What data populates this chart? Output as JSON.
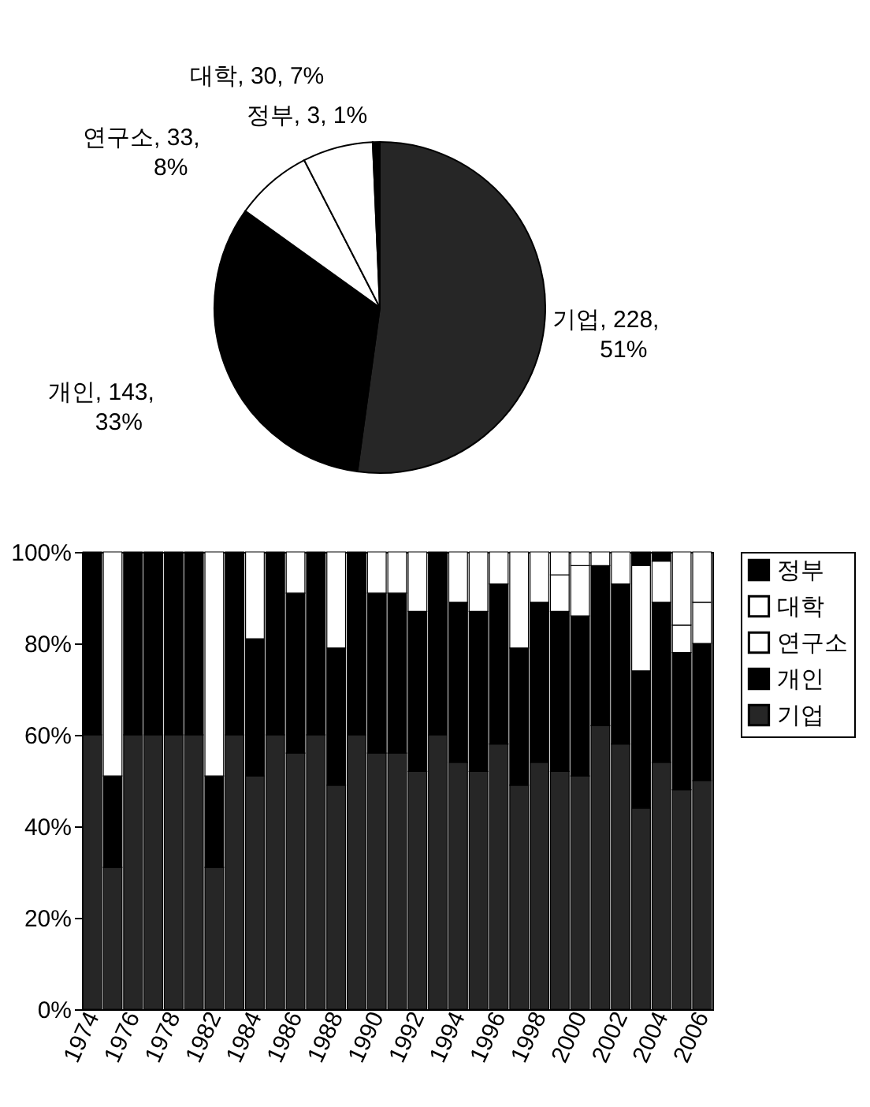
{
  "chart_data": [
    {
      "type": "pie",
      "categories": [
        "기업",
        "개인",
        "연구소",
        "대학",
        "정부"
      ],
      "values": [
        228,
        143,
        33,
        30,
        3
      ],
      "colors": [
        "#262626",
        "#000000",
        "#ffffff",
        "#ffffff",
        "#000000"
      ],
      "value_labels": [
        ", 228, 51%",
        ", 143, 33%",
        ", 33, 8%",
        ", 30, 7%",
        ", 3, 1%"
      ]
    },
    {
      "type": "bar",
      "stacked": true,
      "categories": [
        "1974",
        null,
        "1976",
        null,
        "1978",
        null,
        "1982",
        null,
        "1984",
        null,
        "1986",
        null,
        "1988",
        null,
        "1990",
        null,
        "1992",
        null,
        "1994",
        null,
        "1996",
        null,
        "1998",
        null,
        "2000",
        null,
        "2002",
        null,
        "2004",
        null,
        "2006"
      ],
      "series": [
        {
          "name": "기업",
          "color": "#262626",
          "values": [
            60,
            31,
            60,
            60,
            60,
            60,
            31,
            60,
            51,
            60,
            56,
            60,
            49,
            60,
            56,
            56,
            52,
            60,
            54,
            52,
            58,
            49,
            54,
            52,
            51,
            62,
            58,
            44,
            54,
            48,
            50
          ]
        },
        {
          "name": "개인",
          "color": "#000000",
          "values": [
            40,
            20,
            40,
            40,
            40,
            40,
            20,
            40,
            30,
            40,
            35,
            40,
            30,
            40,
            35,
            35,
            35,
            40,
            35,
            35,
            35,
            30,
            35,
            35,
            35,
            35,
            35,
            30,
            35,
            30,
            30
          ]
        },
        {
          "name": "연구소",
          "color": "#ffffff",
          "values": [
            0,
            0,
            0,
            0,
            0,
            0,
            0,
            0,
            0,
            0,
            0,
            0,
            0,
            0,
            0,
            0,
            0,
            0,
            0,
            0,
            0,
            0,
            0,
            8,
            11,
            0,
            0,
            0,
            0,
            6,
            9
          ]
        },
        {
          "name": "대학",
          "color": "#ffffff",
          "values": [
            0,
            49,
            0,
            0,
            0,
            0,
            49,
            0,
            19,
            0,
            9,
            0,
            21,
            0,
            9,
            9,
            13,
            0,
            11,
            13,
            7,
            21,
            11,
            5,
            3,
            3,
            7,
            23,
            9,
            16,
            11
          ]
        },
        {
          "name": "정부",
          "color": "#000000",
          "values": [
            0,
            0,
            0,
            0,
            0,
            0,
            0,
            0,
            0,
            0,
            0,
            0,
            0,
            0,
            0,
            0,
            0,
            0,
            0,
            0,
            0,
            0,
            0,
            0,
            0,
            0,
            0,
            3,
            2,
            0,
            0
          ]
        }
      ],
      "ylim": [
        0,
        100
      ],
      "yticks": [
        {
          "value": 0,
          "label": "0%"
        },
        {
          "value": 20,
          "label": "20%"
        },
        {
          "value": 40,
          "label": "40%"
        },
        {
          "value": 60,
          "label": "60%"
        },
        {
          "value": 80,
          "label": "80%"
        },
        {
          "value": 100,
          "label": "100%"
        }
      ],
      "legend": "top right"
    }
  ]
}
